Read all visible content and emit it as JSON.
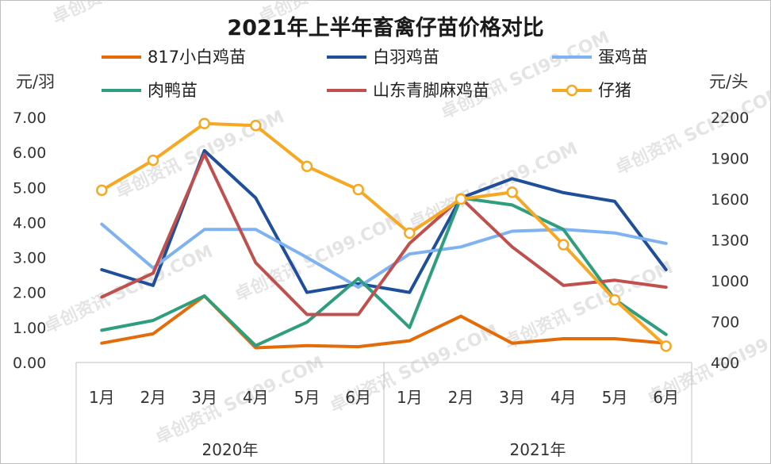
{
  "chart_data": {
    "type": "line",
    "title": "2021年上半年畜禽仔苗价格对比",
    "watermark": "卓创资讯 SCI99.COM",
    "left_axis": {
      "unit": "元/羽",
      "min": 0,
      "max": 7,
      "step": 1,
      "tick_labels": [
        "0.00",
        "1.00",
        "2.00",
        "3.00",
        "4.00",
        "5.00",
        "6.00",
        "7.00"
      ]
    },
    "right_axis": {
      "unit": "元/头",
      "min": 400,
      "max": 2200,
      "step": 300,
      "tick_labels": [
        "400",
        "700",
        "1000",
        "1300",
        "1600",
        "1900",
        "2200"
      ]
    },
    "categories": [
      "1月",
      "2月",
      "3月",
      "4月",
      "5月",
      "6月",
      "1月",
      "2月",
      "3月",
      "4月",
      "5月",
      "6月"
    ],
    "year_groups": [
      {
        "label": "2020年",
        "span": 6
      },
      {
        "label": "2021年",
        "span": 6
      }
    ],
    "series": [
      {
        "name": "817小白鸡苗",
        "axis": "left",
        "color": "#E36C09",
        "marker": false,
        "values": [
          0.55,
          0.82,
          1.9,
          0.42,
          0.48,
          0.45,
          0.62,
          1.32,
          0.55,
          0.68,
          0.68,
          0.55
        ]
      },
      {
        "name": "白羽鸡苗",
        "axis": "left",
        "color": "#1F4E9A",
        "marker": false,
        "values": [
          2.65,
          2.2,
          6.05,
          4.7,
          2.0,
          2.25,
          2.0,
          4.7,
          5.25,
          4.85,
          4.6,
          2.65
        ]
      },
      {
        "name": "蛋鸡苗",
        "axis": "left",
        "color": "#7FB2F0",
        "marker": false,
        "values": [
          3.95,
          2.7,
          3.8,
          3.8,
          3.0,
          2.15,
          3.1,
          3.3,
          3.75,
          3.8,
          3.7,
          3.4
        ]
      },
      {
        "name": "肉鸭苗",
        "axis": "left",
        "color": "#2E9E7E",
        "marker": false,
        "values": [
          0.92,
          1.2,
          1.9,
          0.48,
          1.15,
          2.4,
          1.0,
          4.7,
          4.5,
          3.8,
          1.8,
          0.8
        ]
      },
      {
        "name": "山东青脚麻鸡苗",
        "axis": "left",
        "color": "#C0504D",
        "marker": false,
        "values": [
          1.87,
          2.55,
          5.95,
          2.85,
          1.37,
          1.37,
          3.4,
          4.7,
          3.3,
          2.2,
          2.35,
          2.15
        ]
      },
      {
        "name": "仔猪",
        "axis": "right",
        "color": "#F7A823",
        "marker": true,
        "values": [
          1665,
          1885,
          2155,
          2140,
          1840,
          1670,
          1350,
          1600,
          1650,
          1265,
          860,
          520
        ]
      }
    ],
    "legend": "top, three columns",
    "grid": false
  }
}
